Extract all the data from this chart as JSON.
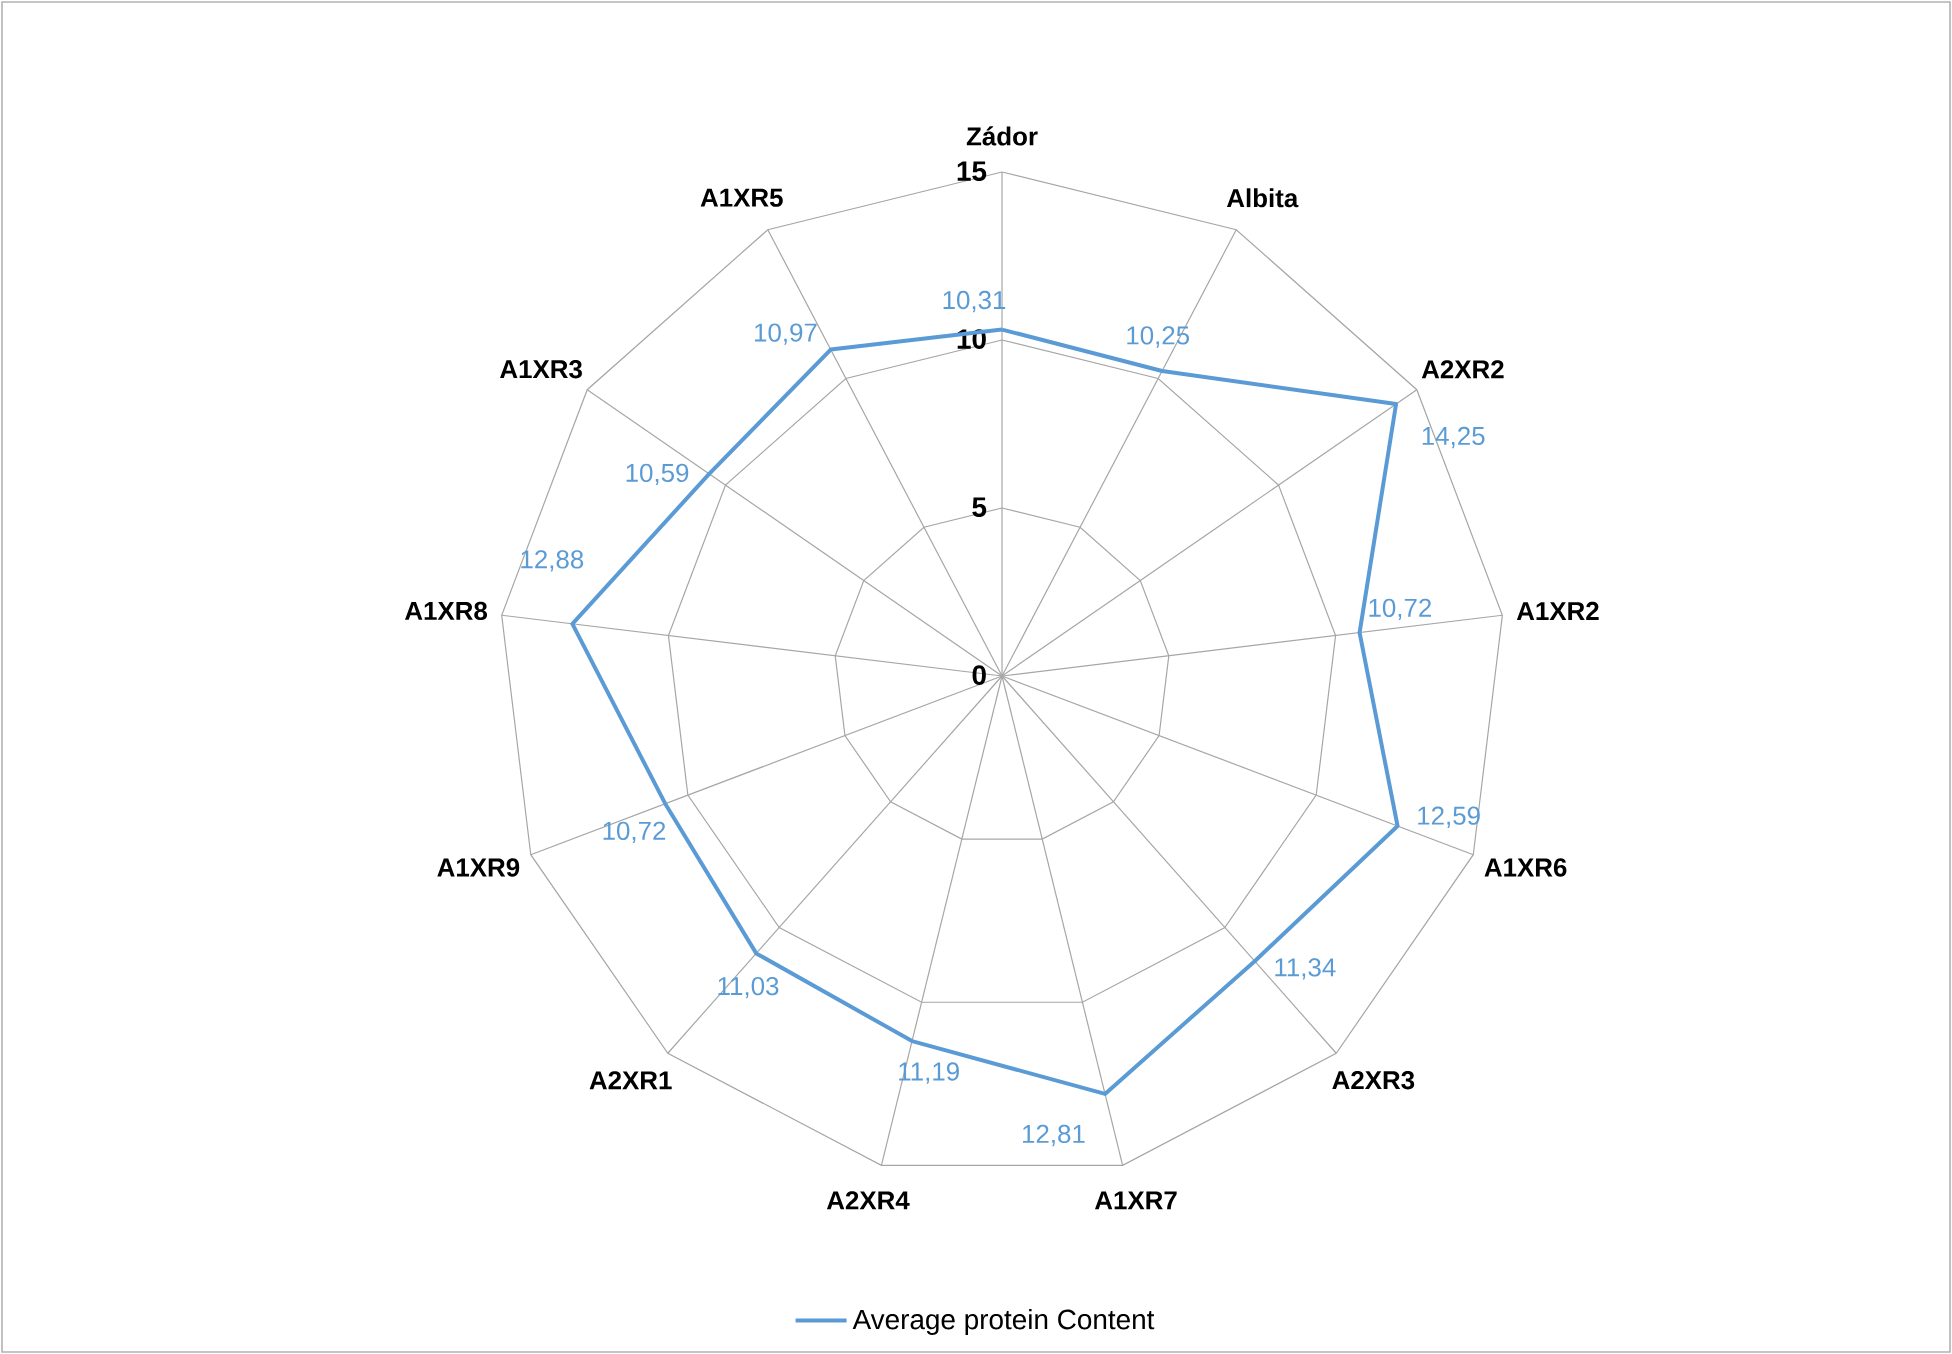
{
  "chart_data": {
    "type": "radar",
    "categories": [
      "Zádor",
      "Albita",
      "A2XR2",
      "A1XR2",
      "A1XR6",
      "A2XR3",
      "A1XR7",
      "A2XR4",
      "A2XR1",
      "A1XR9",
      "A1XR8",
      "A1XR3",
      "A1XR5"
    ],
    "series": [
      {
        "name": "Average protein Content",
        "color": "#5b9bd5",
        "values": [
          10.31,
          10.25,
          14.25,
          10.72,
          12.59,
          11.34,
          12.81,
          11.19,
          11.03,
          10.72,
          12.88,
          10.59,
          10.97
        ],
        "value_labels": [
          "10,31",
          "10,25",
          "14,25",
          "10,72",
          "12,59",
          "11,34",
          "12,81",
          "11,19",
          "11,03",
          "10,72",
          "12,88",
          "10,59",
          "10,97"
        ]
      }
    ],
    "ylim": [
      0,
      15
    ],
    "yticks": [
      0,
      5,
      10,
      15
    ],
    "grid": true,
    "legend": "bottom",
    "marker": "none",
    "line_style": "solid"
  }
}
